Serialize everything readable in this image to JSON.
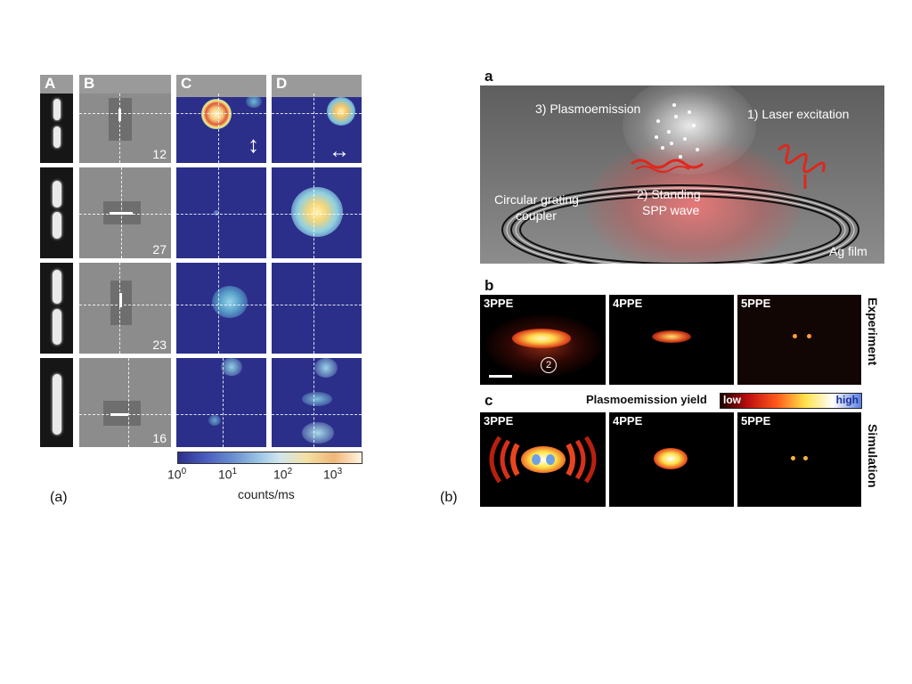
{
  "left_figure": {
    "caption": "(a)",
    "column_headers": [
      "A",
      "B",
      "C",
      "D"
    ],
    "row_numbers": [
      "12",
      "27",
      "23",
      "16"
    ],
    "colorbar": {
      "label": "counts/ms",
      "ticks": [
        {
          "base": "10",
          "exp": "0"
        },
        {
          "base": "10",
          "exp": "1"
        },
        {
          "base": "10",
          "exp": "2"
        },
        {
          "base": "10",
          "exp": "3"
        }
      ]
    },
    "arrows": {
      "c_row1": "↕",
      "d_row1": "↔"
    }
  },
  "right_figure": {
    "caption": "(b)",
    "panel_a": {
      "letter": "a",
      "labels": {
        "plasmoemission": "3) Plasmoemission",
        "laser": "1) Laser excitation",
        "grating_line1": "Circular grating",
        "grating_line2": "coupler",
        "standing_line1": "2) Standing",
        "standing_line2": "SPP wave",
        "film": "Ag film"
      }
    },
    "panel_b": {
      "letter": "b",
      "side_label": "Experiment",
      "tiles": [
        "3PPE",
        "4PPE",
        "5PPE"
      ],
      "marker": "2"
    },
    "yield_bar": {
      "title": "Plasmoemission yield",
      "low": "low",
      "high": "high"
    },
    "panel_c": {
      "letter": "c",
      "side_label": "Simulation",
      "tiles": [
        "3PPE",
        "4PPE",
        "5PPE"
      ]
    }
  },
  "colors": {
    "counts_bg": "#2b2f8a",
    "header_gray": "#9a9a9a",
    "plasmo_red": "#e0261c",
    "plasmo_yellow": "#ffe94a"
  }
}
